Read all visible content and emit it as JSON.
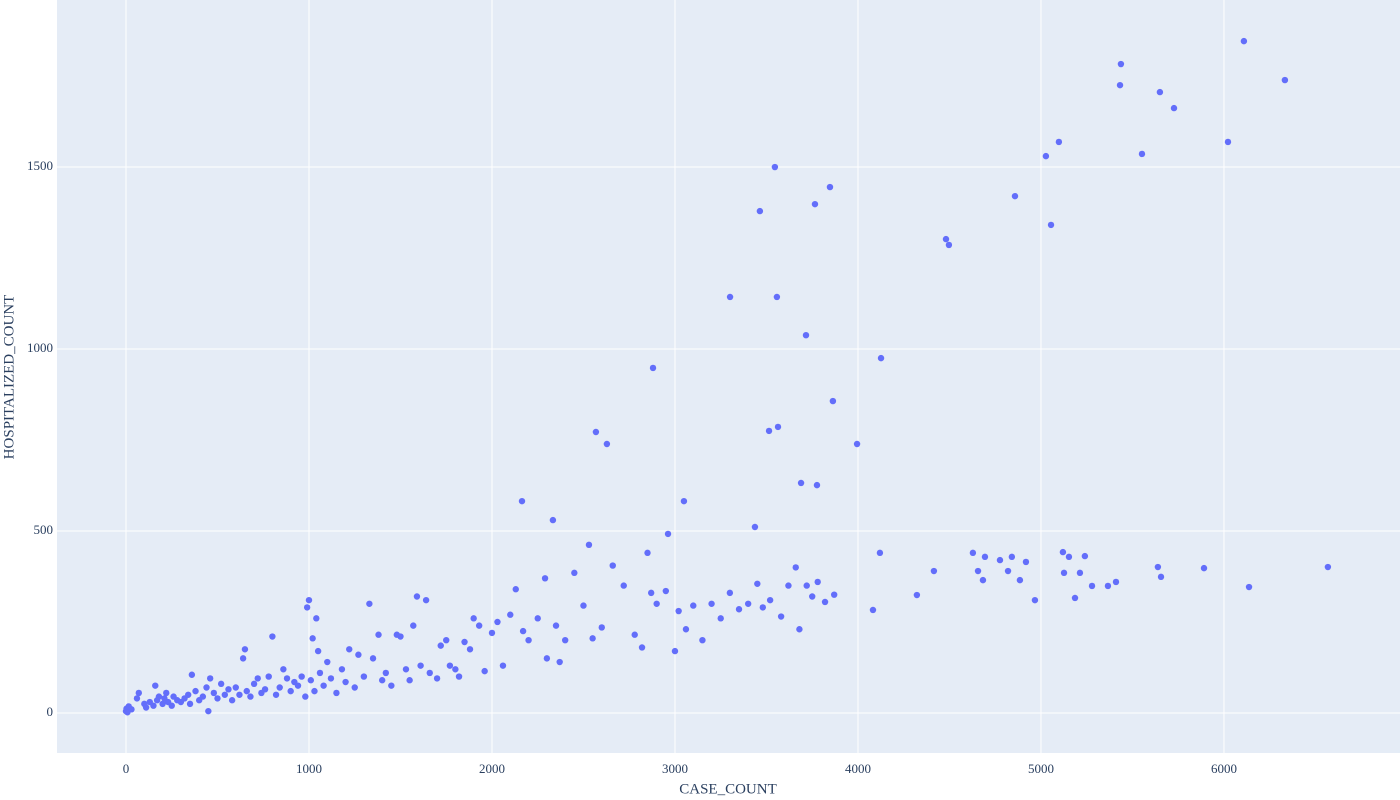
{
  "chart_data": {
    "type": "scatter",
    "x_label": "CASE_COUNT",
    "y_label": "HOSPITALIZED_COUNT",
    "color": "#636efa",
    "grid": true,
    "xlim": [
      -377,
      6962
    ],
    "ylim": [
      -110,
      1959
    ],
    "xticks": [
      0,
      1000,
      2000,
      3000,
      4000,
      5000,
      6000
    ],
    "yticks": [
      0,
      500,
      1000,
      1500
    ],
    "x": [
      0,
      3,
      8,
      15,
      30,
      60,
      70,
      100,
      110,
      130,
      150,
      160,
      170,
      180,
      200,
      210,
      220,
      230,
      250,
      260,
      280,
      300,
      320,
      340,
      350,
      360,
      380,
      400,
      420,
      440,
      450,
      460,
      480,
      500,
      520,
      540,
      560,
      580,
      600,
      620,
      640,
      650,
      660,
      680,
      700,
      720,
      740,
      760,
      780,
      800,
      820,
      840,
      860,
      880,
      900,
      920,
      940,
      960,
      980,
      990,
      1000,
      1010,
      1020,
      1030,
      1040,
      1050,
      1060,
      1080,
      1100,
      1120,
      1150,
      1180,
      1200,
      1220,
      1250,
      1270,
      1300,
      1330,
      1350,
      1380,
      1400,
      1420,
      1450,
      1480,
      1500,
      1530,
      1550,
      1570,
      1590,
      1610,
      1640,
      1660,
      1700,
      1720,
      1750,
      1770,
      1800,
      1820,
      1850,
      1880,
      1900,
      1930,
      1960,
      2000,
      2030,
      2060,
      2100,
      2130,
      2170,
      2200,
      2250,
      2290,
      2300,
      2350,
      2370,
      2400,
      2450,
      2500,
      2550,
      2600,
      2660,
      2720,
      2780,
      2820,
      2850,
      2870,
      2900,
      2950,
      3000,
      3020,
      3060,
      3100,
      3150,
      3200,
      3250,
      3300,
      3350,
      3400,
      3450,
      3480,
      3520,
      3580,
      3620,
      3660,
      3680,
      3720,
      3750,
      3780,
      3820,
      3870,
      5437,
      5432,
      6109,
      6333,
      5650,
      5727,
      6022,
      5552,
      5098,
      5027,
      4858,
      5055,
      4481,
      4497,
      3546,
      3847,
      3765,
      3464,
      3301,
      3557,
      3716,
      4126,
      2880,
      3863,
      3563,
      3514,
      2568,
      2628,
      3995,
      3689,
      3776,
      3049,
      2164,
      2333,
      3437,
      2962,
      2530,
      4120,
      4628,
      4694,
      4776,
      4841,
      4918,
      5120,
      5153,
      5240,
      5639,
      5891,
      6568,
      4415,
      4656,
      4820,
      5126,
      5213,
      5656,
      4683,
      4885,
      5410,
      5366,
      5279,
      6137,
      4322,
      5186,
      4967,
      4082
    ],
    "values": [
      5,
      12,
      2,
      18,
      10,
      40,
      55,
      25,
      15,
      30,
      20,
      75,
      35,
      45,
      25,
      40,
      55,
      30,
      20,
      45,
      35,
      30,
      40,
      50,
      25,
      105,
      60,
      35,
      45,
      70,
      5,
      95,
      55,
      40,
      80,
      50,
      65,
      35,
      70,
      50,
      150,
      175,
      60,
      45,
      80,
      95,
      55,
      65,
      100,
      210,
      50,
      70,
      120,
      95,
      60,
      85,
      75,
      100,
      45,
      290,
      310,
      90,
      205,
      60,
      260,
      170,
      110,
      75,
      140,
      95,
      55,
      120,
      85,
      175,
      70,
      160,
      100,
      300,
      150,
      215,
      90,
      110,
      75,
      215,
      210,
      120,
      90,
      240,
      320,
      130,
      310,
      110,
      95,
      185,
      200,
      130,
      120,
      100,
      195,
      175,
      260,
      240,
      115,
      220,
      250,
      130,
      270,
      340,
      225,
      200,
      260,
      370,
      150,
      240,
      140,
      200,
      385,
      295,
      205,
      235,
      405,
      350,
      215,
      180,
      440,
      330,
      300,
      335,
      170,
      280,
      230,
      295,
      200,
      300,
      260,
      330,
      285,
      300,
      355,
      290,
      310,
      265,
      350,
      400,
      230,
      350,
      320,
      360,
      305,
      325,
      1783,
      1725,
      1846,
      1739,
      1706,
      1662,
      1569,
      1536,
      1569,
      1530,
      1420,
      1341,
      1302,
      1286,
      1500,
      1445,
      1398,
      1379,
      1143,
      1143,
      1038,
      975,
      948,
      857,
      786,
      775,
      772,
      739,
      739,
      632,
      626,
      582,
      582,
      530,
      511,
      492,
      462,
      440,
      440,
      429,
      420,
      429,
      415,
      442,
      429,
      431,
      401,
      398,
      401,
      390,
      390,
      390,
      385,
      385,
      374,
      365,
      365,
      360,
      349,
      349,
      346,
      324,
      316,
      310,
      283
    ]
  }
}
